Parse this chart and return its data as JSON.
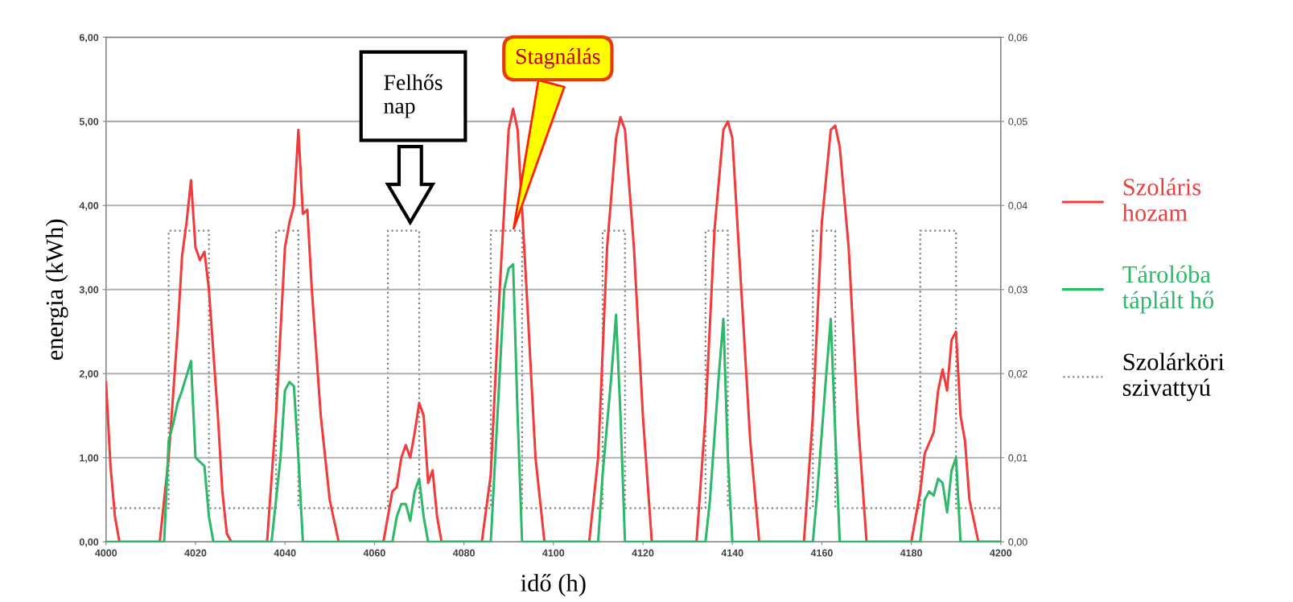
{
  "chart_data": {
    "type": "line",
    "xlabel": "idő (h)",
    "ylabel": "energia (kWh)",
    "xlim": [
      4000,
      4200
    ],
    "xticks": [
      4000,
      4020,
      4040,
      4060,
      4080,
      4100,
      4120,
      4140,
      4160,
      4180,
      4200
    ],
    "ylim": [
      0,
      6
    ],
    "yticks": [
      {
        "value": 0,
        "label": "0,00"
      },
      {
        "value": 1,
        "label": "1,00"
      },
      {
        "value": 2,
        "label": "2,00"
      },
      {
        "value": 3,
        "label": "3,00"
      },
      {
        "value": 4,
        "label": "4,00"
      },
      {
        "value": 5,
        "label": "5,00"
      },
      {
        "value": 6,
        "label": "6,00"
      }
    ],
    "y2lim": [
      0,
      0.06
    ],
    "y2ticks": [
      {
        "value": 0,
        "label": "0,00"
      },
      {
        "value": 0.01,
        "label": "0,01"
      },
      {
        "value": 0.02,
        "label": "0,02"
      },
      {
        "value": 0.03,
        "label": "0,03"
      },
      {
        "value": 0.04,
        "label": "0,04"
      },
      {
        "value": 0.05,
        "label": "0,05"
      },
      {
        "value": 0.06,
        "label": "0,06"
      }
    ],
    "grid": "y",
    "legend": "right",
    "annotations": [
      "Felhős\nnap",
      {
        "text": "Stagnálás",
        "x": 4091,
        "y": 3.7
      }
    ],
    "series": [
      {
        "name": "Szoláris\nhozam",
        "color": "#f03c3c",
        "line_style": "solid",
        "x": [
          4000,
          4001,
          4002,
          4003,
          4012,
          4014,
          4016,
          4017,
          4018,
          4019,
          4020,
          4021,
          4022,
          4023,
          4025,
          4026,
          4027,
          4028,
          4036,
          4038,
          4040,
          4041,
          4042,
          4043,
          4044,
          4045,
          4046,
          4048,
          4050,
          4052,
          4062,
          4063,
          4064,
          4065,
          4066,
          4067,
          4068,
          4069,
          4070,
          4071,
          4072,
          4073,
          4074,
          4075,
          4084,
          4086,
          4088,
          4090,
          4091,
          4092,
          4094,
          4096,
          4098,
          4108,
          4110,
          4112,
          4114,
          4115,
          4116,
          4118,
          4120,
          4122,
          4132,
          4134,
          4136,
          4138,
          4139,
          4140,
          4142,
          4144,
          4146,
          4156,
          4158,
          4160,
          4162,
          4163,
          4164,
          4166,
          4168,
          4170,
          4180,
          4181,
          4182,
          4183,
          4185,
          4186,
          4187,
          4188,
          4189,
          4190,
          4191,
          4192,
          4193,
          4195,
          4200
        ],
        "values": [
          1.9,
          0.9,
          0.3,
          0,
          0,
          1.0,
          2.5,
          3.4,
          3.8,
          4.3,
          3.5,
          3.35,
          3.45,
          3.0,
          1.5,
          0.6,
          0.1,
          0,
          0,
          1.5,
          3.5,
          3.8,
          4.0,
          4.9,
          3.9,
          3.95,
          3.0,
          1.5,
          0.5,
          0,
          0,
          0.3,
          0.6,
          0.65,
          1.0,
          1.15,
          1.0,
          1.3,
          1.65,
          1.5,
          0.7,
          0.85,
          0.3,
          0,
          0,
          0.8,
          3.0,
          4.9,
          5.15,
          4.9,
          3.0,
          1.0,
          0,
          0,
          1.0,
          3.5,
          4.8,
          5.05,
          4.9,
          3.5,
          1.5,
          0,
          0,
          1.5,
          3.7,
          4.9,
          5.0,
          4.8,
          3.0,
          1.2,
          0,
          0,
          1.5,
          3.8,
          4.9,
          4.95,
          4.7,
          3.5,
          1.5,
          0,
          0,
          0.3,
          0.6,
          1.05,
          1.3,
          1.8,
          2.05,
          1.8,
          2.4,
          2.5,
          1.5,
          1.2,
          0.5,
          0,
          0
        ]
      },
      {
        "name": "Tárolóba\ntáplált hő",
        "color": "#2eb86a",
        "line_style": "solid",
        "x": [
          4000,
          4013,
          4014,
          4015,
          4016,
          4017,
          4019,
          4020,
          4021,
          4022,
          4023,
          4024,
          4037,
          4039,
          4040,
          4041,
          4042,
          4043,
          4044,
          4064,
          4065,
          4066,
          4067,
          4068,
          4069,
          4070,
          4071,
          4072,
          4086,
          4087,
          4089,
          4090,
          4091,
          4092,
          4093,
          4110,
          4111,
          4113,
          4114,
          4115,
          4116,
          4134,
          4135,
          4137,
          4138,
          4139,
          4140,
          4158,
          4159,
          4161,
          4162,
          4163,
          4164,
          4182,
          4183,
          4184,
          4185,
          4186,
          4187,
          4188,
          4189,
          4190,
          4191,
          4200
        ],
        "values": [
          0,
          0,
          1.2,
          1.4,
          1.65,
          1.8,
          2.15,
          1.0,
          0.95,
          0.9,
          0.3,
          0,
          0,
          1.0,
          1.8,
          1.9,
          1.85,
          1.0,
          0,
          0,
          0.3,
          0.45,
          0.45,
          0.25,
          0.6,
          0.75,
          0.3,
          0,
          0,
          1.0,
          3.0,
          3.25,
          3.3,
          1.5,
          0,
          0,
          0.8,
          2.0,
          2.7,
          1.5,
          0,
          0,
          0.5,
          2.0,
          2.65,
          1.0,
          0,
          0,
          0.6,
          2.0,
          2.65,
          1.3,
          0,
          0,
          0.5,
          0.6,
          0.55,
          0.75,
          0.7,
          0.35,
          0.85,
          1.0,
          0,
          0
        ]
      },
      {
        "name": "Szolárköri\nszivattyú",
        "color": "#808080",
        "line_style": "dotted",
        "axis": "y2",
        "x": [
          4001,
          4014,
          4014,
          4023,
          4023,
          4038,
          4038,
          4043,
          4043,
          4063,
          4063,
          4070,
          4070,
          4086,
          4086,
          4093,
          4093,
          4111,
          4111,
          4116,
          4116,
          4134,
          4134,
          4139,
          4139,
          4158,
          4158,
          4163,
          4163,
          4182,
          4182,
          4190,
          4190,
          4200
        ],
        "values": [
          0.004,
          0.004,
          0.037,
          0.037,
          0.004,
          0.004,
          0.037,
          0.037,
          0.004,
          0.004,
          0.037,
          0.037,
          0.004,
          0.004,
          0.037,
          0.037,
          0.004,
          0.004,
          0.037,
          0.037,
          0.004,
          0.004,
          0.037,
          0.037,
          0.004,
          0.004,
          0.037,
          0.037,
          0.004,
          0.004,
          0.037,
          0.037,
          0.004,
          0.004
        ]
      }
    ]
  }
}
